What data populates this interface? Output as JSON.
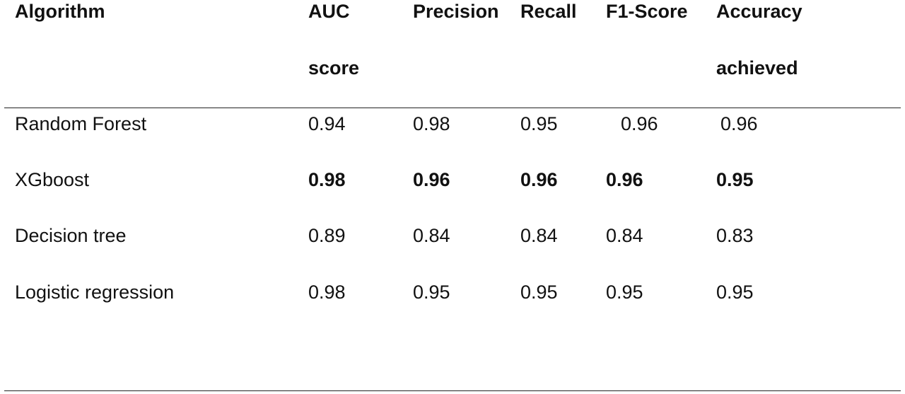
{
  "table": {
    "headers": [
      [
        "Algorithm"
      ],
      [
        "AUC",
        "score"
      ],
      [
        "Precision"
      ],
      [
        "Recall"
      ],
      [
        "F1-Score"
      ],
      [
        "Accuracy",
        "achieved"
      ]
    ],
    "rows": [
      {
        "algorithm": "Random Forest",
        "auc": "0.94",
        "precision": "0.98",
        "recall": "0.95",
        "f1": "0.96",
        "accuracy": "0.96",
        "bold": false
      },
      {
        "algorithm": "XGboost",
        "auc": "0.98",
        "precision": "0.96",
        "recall": "0.96",
        "f1": "0.96",
        "accuracy": "0.95",
        "bold": true
      },
      {
        "algorithm": "Decision tree",
        "auc": "0.89",
        "precision": "0.84",
        "recall": "0.84",
        "f1": "0.84",
        "accuracy": "0.83",
        "bold": false
      },
      {
        "algorithm": "Logistic regression",
        "auc": "0.98",
        "precision": "0.95",
        "recall": "0.95",
        "f1": "0.95",
        "accuracy": "0.95",
        "bold": false
      }
    ]
  }
}
